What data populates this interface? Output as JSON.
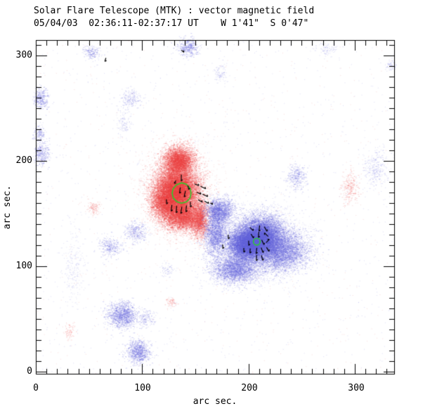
{
  "header": {
    "title_line1": "Solar Flare Telescope (MTK) : vector magnetic field",
    "title_line2": "05/04/03  02:36:11-02:37:17 UT    W 1'41\"  S 0'47\""
  },
  "axes": {
    "x": {
      "label": "arc sec.",
      "tick_labels": [
        "0",
        "100",
        "200",
        "300"
      ],
      "tick_values": [
        0,
        100,
        200,
        300
      ],
      "minor_step": 10,
      "range": [
        0,
        337
      ]
    },
    "y": {
      "label": "arc sec.",
      "tick_labels": [
        "0",
        "100",
        "200",
        "300"
      ],
      "tick_values": [
        0,
        100,
        200,
        300
      ],
      "minor_step": 10,
      "range": [
        -2,
        315
      ]
    }
  },
  "colors": {
    "positive": "#ee4545",
    "negative": "#6767dd",
    "contour": "#2ecc2e",
    "frame": "#000000",
    "arrow": "#000000",
    "background": "#ffffff"
  },
  "chart_data": {
    "type": "heatmap",
    "title": "Solar Flare Telescope (MTK) : vector magnetic field",
    "subtitle": "05/04/03  02:36:11-02:37:17 UT    W 1'41\"  S 0'47\"",
    "xlabel": "arc sec.",
    "ylabel": "arc sec.",
    "xlim": [
      0,
      337
    ],
    "ylim": [
      -2,
      315
    ],
    "grid": false,
    "seed": 20030504,
    "positive_region_center": {
      "x": 133,
      "y": 170
    },
    "negative_region_center": {
      "x": 207,
      "y": 122
    },
    "blobs": [
      {
        "x": 134.2,
        "y": 200.0,
        "sx": 7.3,
        "sy": 6.7,
        "n": 4500,
        "a": 0.3,
        "pol": "p"
      },
      {
        "x": 132.2,
        "y": 171.3,
        "sx": 9.9,
        "sy": 11.3,
        "n": 13000,
        "a": 0.3,
        "pol": "p"
      },
      {
        "x": 138.1,
        "y": 147.3,
        "sx": 8.6,
        "sy": 6.7,
        "n": 4200,
        "a": 0.3,
        "pol": "p"
      },
      {
        "x": 120.3,
        "y": 160.0,
        "sx": 6.6,
        "sy": 8.0,
        "n": 2600,
        "a": 0.3,
        "pol": "p"
      },
      {
        "x": 154.0,
        "y": 144.0,
        "sx": 4.0,
        "sy": 8.7,
        "n": 1800,
        "a": 0.3,
        "pol": "p"
      },
      {
        "x": 132.8,
        "y": 171.0,
        "sx": 15.9,
        "sy": 20.0,
        "n": 3000,
        "a": 0.14,
        "pol": "p"
      },
      {
        "x": 199.0,
        "y": 120.7,
        "sx": 9.3,
        "sy": 7.3,
        "n": 9000,
        "a": 0.3,
        "pol": "n"
      },
      {
        "x": 212.0,
        "y": 129.0,
        "sx": 10.6,
        "sy": 9.3,
        "n": 8000,
        "a": 0.3,
        "pol": "n"
      },
      {
        "x": 229.0,
        "y": 114.7,
        "sx": 13.2,
        "sy": 9.3,
        "n": 5000,
        "a": 0.28,
        "pol": "n"
      },
      {
        "x": 188.0,
        "y": 97.3,
        "sx": 10.6,
        "sy": 6.7,
        "n": 3200,
        "a": 0.28,
        "pol": "n"
      },
      {
        "x": 168.5,
        "y": 131.3,
        "sx": 5.3,
        "sy": 10.7,
        "n": 2200,
        "a": 0.28,
        "pol": "n"
      },
      {
        "x": 172.5,
        "y": 152.7,
        "sx": 6.6,
        "sy": 6.0,
        "n": 2000,
        "a": 0.28,
        "pol": "n"
      },
      {
        "x": 209.5,
        "y": 122.7,
        "sx": 19.8,
        "sy": 16.0,
        "n": 3500,
        "a": 0.14,
        "pol": "n"
      },
      {
        "x": 143.0,
        "y": 308.0,
        "sx": 4.6,
        "sy": 4.0,
        "n": 420,
        "a": 0.3,
        "pol": "n"
      },
      {
        "x": 52.0,
        "y": 303.0,
        "sx": 4.0,
        "sy": 3.3,
        "n": 200,
        "a": 0.26,
        "pol": "n"
      },
      {
        "x": 274.0,
        "y": 306.0,
        "sx": 5.3,
        "sy": 2.7,
        "n": 90,
        "a": 0.22,
        "pol": "n"
      },
      {
        "x": 334.0,
        "y": 291.0,
        "sx": 2.6,
        "sy": 2.7,
        "n": 70,
        "a": 0.22,
        "pol": "n"
      },
      {
        "x": 4.0,
        "y": 259.0,
        "sx": 3.3,
        "sy": 4.7,
        "n": 330,
        "a": 0.3,
        "pol": "n"
      },
      {
        "x": 3.0,
        "y": 226.0,
        "sx": 2.6,
        "sy": 4.0,
        "n": 180,
        "a": 0.26,
        "pol": "n"
      },
      {
        "x": 5.0,
        "y": 207.0,
        "sx": 4.0,
        "sy": 6.0,
        "n": 330,
        "a": 0.3,
        "pol": "n"
      },
      {
        "x": 89.0,
        "y": 259.0,
        "sx": 4.6,
        "sy": 4.0,
        "n": 200,
        "a": 0.24,
        "pol": "n"
      },
      {
        "x": 82.0,
        "y": 236.0,
        "sx": 3.3,
        "sy": 8.0,
        "n": 130,
        "a": 0.2,
        "pol": "n"
      },
      {
        "x": 173.0,
        "y": 284.0,
        "sx": 3.3,
        "sy": 4.7,
        "n": 100,
        "a": 0.2,
        "pol": "n"
      },
      {
        "x": 245.0,
        "y": 185.0,
        "sx": 4.6,
        "sy": 6.0,
        "n": 330,
        "a": 0.28,
        "pol": "n"
      },
      {
        "x": 319.0,
        "y": 193.0,
        "sx": 5.3,
        "sy": 8.7,
        "n": 280,
        "a": 0.22,
        "pol": "n"
      },
      {
        "x": 295.0,
        "y": 175.0,
        "sx": 4.0,
        "sy": 8.0,
        "n": 280,
        "a": 0.22,
        "pol": "p"
      },
      {
        "x": 70.0,
        "y": 119.0,
        "sx": 5.3,
        "sy": 4.7,
        "n": 330,
        "a": 0.28,
        "pol": "n"
      },
      {
        "x": 94.0,
        "y": 133.0,
        "sx": 5.3,
        "sy": 4.7,
        "n": 330,
        "a": 0.28,
        "pol": "n"
      },
      {
        "x": 36.0,
        "y": 99.0,
        "sx": 5.3,
        "sy": 18.0,
        "n": 220,
        "a": 0.18,
        "pol": "n"
      },
      {
        "x": 81.0,
        "y": 54.0,
        "sx": 7.3,
        "sy": 6.0,
        "n": 1300,
        "a": 0.3,
        "pol": "n"
      },
      {
        "x": 104.0,
        "y": 51.0,
        "sx": 4.0,
        "sy": 4.0,
        "n": 160,
        "a": 0.24,
        "pol": "n"
      },
      {
        "x": 96.0,
        "y": 19.0,
        "sx": 5.5,
        "sy": 5.5,
        "n": 900,
        "a": 0.3,
        "pol": "n"
      },
      {
        "x": 54.0,
        "y": 156.0,
        "sx": 3.3,
        "sy": 3.3,
        "n": 120,
        "a": 0.22,
        "pol": "p"
      },
      {
        "x": 31.0,
        "y": 38.0,
        "sx": 2.6,
        "sy": 4.0,
        "n": 90,
        "a": 0.2,
        "pol": "p"
      },
      {
        "x": 127.0,
        "y": 66.0,
        "sx": 2.6,
        "sy": 2.6,
        "n": 70,
        "a": 0.24,
        "pol": "p"
      },
      {
        "x": 123.0,
        "y": 96.0,
        "sx": 2.6,
        "sy": 2.6,
        "n": 70,
        "a": 0.2,
        "pol": "n"
      }
    ],
    "noise": {
      "negative_dots": 1100,
      "negative_alpha": 0.22,
      "positive_dots": 550,
      "positive_alpha": 0.18
    },
    "contours": [
      {
        "kind": "polygon",
        "points": [
          [
            146.0,
            169.3
          ],
          [
            145.0,
            174.2
          ],
          [
            141.4,
            177.8
          ],
          [
            137.1,
            179.2
          ],
          [
            132.5,
            177.4
          ],
          [
            129.2,
            173.8
          ],
          [
            128.2,
            169.3
          ],
          [
            129.3,
            164.6
          ],
          [
            132.8,
            161.2
          ],
          [
            137.1,
            159.9
          ],
          [
            141.7,
            161.2
          ],
          [
            145.0,
            164.6
          ]
        ]
      },
      {
        "kind": "circle",
        "cx": 207.8,
        "cy": 123.3,
        "r": 3.2
      }
    ],
    "arrows": [
      {
        "x": 136.8,
        "y": 184.0,
        "ang": 268,
        "len": 6.0
      },
      {
        "x": 130.9,
        "y": 180.0,
        "ang": 235,
        "len": 3.0
      },
      {
        "x": 135.5,
        "y": 172.0,
        "ang": 262,
        "len": 5.5
      },
      {
        "x": 140.1,
        "y": 168.7,
        "ang": 258,
        "len": 6.0
      },
      {
        "x": 143.4,
        "y": 174.7,
        "ang": 282,
        "len": 4.0
      },
      {
        "x": 127.6,
        "y": 155.3,
        "ang": 263,
        "len": 6.0
      },
      {
        "x": 132.2,
        "y": 154.0,
        "ang": 266,
        "len": 6.5
      },
      {
        "x": 136.8,
        "y": 153.3,
        "ang": 260,
        "len": 6.5
      },
      {
        "x": 141.4,
        "y": 154.7,
        "ang": 264,
        "len": 6.0
      },
      {
        "x": 122.9,
        "y": 161.3,
        "ang": 273,
        "len": 4.5
      },
      {
        "x": 145.4,
        "y": 158.7,
        "ang": 270,
        "len": 5.0
      },
      {
        "x": 151.3,
        "y": 177.3,
        "ang": 338,
        "len": 4.5
      },
      {
        "x": 157.3,
        "y": 174.7,
        "ang": 333,
        "len": 5.5
      },
      {
        "x": 153.3,
        "y": 169.3,
        "ang": 336,
        "len": 4.5
      },
      {
        "x": 159.2,
        "y": 167.3,
        "ang": 333,
        "len": 5.5
      },
      {
        "x": 154.6,
        "y": 162.0,
        "ang": 328,
        "len": 4.5
      },
      {
        "x": 160.6,
        "y": 160.7,
        "ang": 328,
        "len": 4.5
      },
      {
        "x": 165.2,
        "y": 159.3,
        "ang": 328,
        "len": 2.5
      },
      {
        "x": 65.4,
        "y": 296.0,
        "ang": 253,
        "len": 3.5
      },
      {
        "x": 138.1,
        "y": 304.0,
        "ang": 318,
        "len": 3.0
      },
      {
        "x": 202.9,
        "y": 135.3,
        "ang": 315,
        "len": 4.5
      },
      {
        "x": 210.2,
        "y": 136.0,
        "ang": 263,
        "len": 5.5
      },
      {
        "x": 216.1,
        "y": 135.3,
        "ang": 300,
        "len": 5.0
      },
      {
        "x": 203.5,
        "y": 128.7,
        "ang": 300,
        "len": 4.5
      },
      {
        "x": 209.5,
        "y": 130.0,
        "ang": 266,
        "len": 5.5
      },
      {
        "x": 216.8,
        "y": 130.0,
        "ang": 135,
        "len": 5.0
      },
      {
        "x": 200.2,
        "y": 122.0,
        "ang": 271,
        "len": 4.5
      },
      {
        "x": 213.5,
        "y": 122.7,
        "ang": 295,
        "len": 5.0
      },
      {
        "x": 218.1,
        "y": 124.0,
        "ang": 45,
        "len": 4.5
      },
      {
        "x": 195.6,
        "y": 115.3,
        "ang": 271,
        "len": 4.0
      },
      {
        "x": 201.5,
        "y": 114.7,
        "ang": 266,
        "len": 4.5
      },
      {
        "x": 207.5,
        "y": 114.7,
        "ang": 263,
        "len": 5.5
      },
      {
        "x": 212.8,
        "y": 115.3,
        "ang": 290,
        "len": 5.0
      },
      {
        "x": 218.1,
        "y": 116.0,
        "ang": 300,
        "len": 4.5
      },
      {
        "x": 207.5,
        "y": 108.0,
        "ang": 266,
        "len": 5.5
      },
      {
        "x": 212.8,
        "y": 108.0,
        "ang": 285,
        "len": 5.0
      },
      {
        "x": 181.0,
        "y": 128.0,
        "ang": 272,
        "len": 4.0
      },
      {
        "x": 175.8,
        "y": 118.7,
        "ang": 272,
        "len": 4.0
      }
    ]
  }
}
